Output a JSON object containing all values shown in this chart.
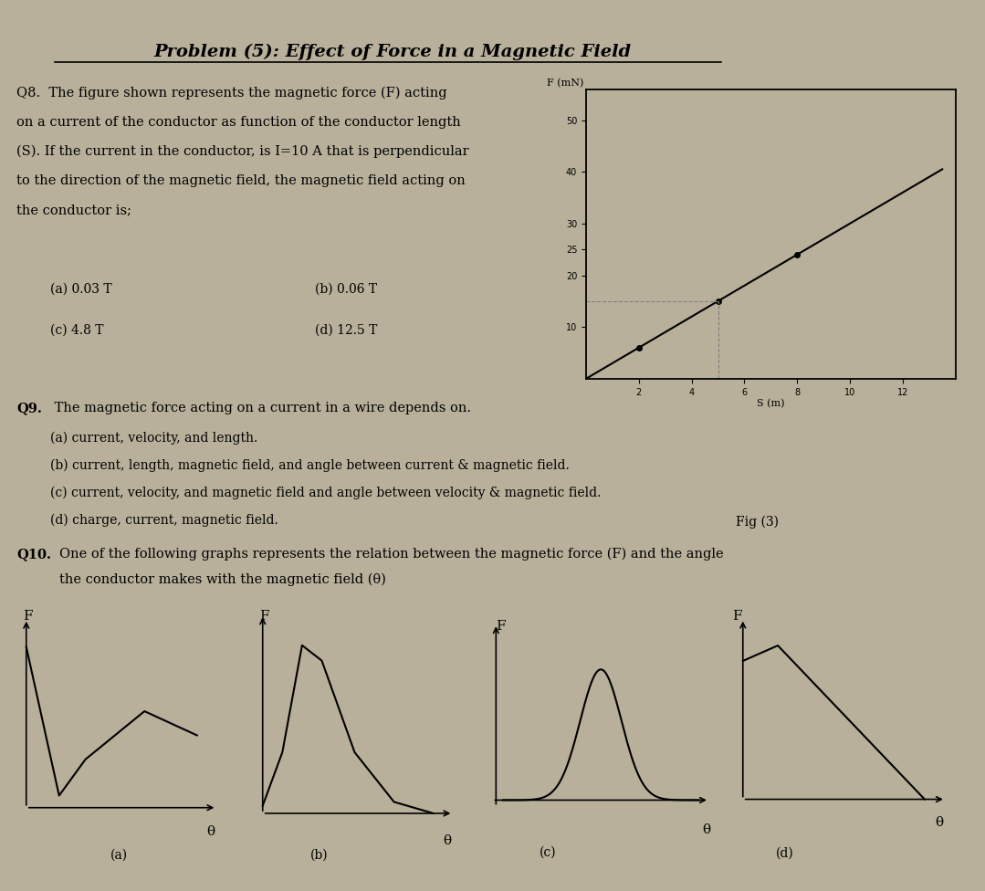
{
  "bg_color": "#b8b09a",
  "title": "Problem (5): Effect of Force in a Magnetic Field",
  "q8_text_bold": "Q8.",
  "q8_text": " The figure shown represents the magnetic force (F) acting\non a current of the conductor as function of the conductor length\n(S). If the current in the conductor, is I=10 A that is perpendicular\nto the direction of the magnetic field, the magnetic field acting on\nthe conductor is;",
  "q8_opt_a": "(a) 0.03 T",
  "q8_opt_b": "(b) 0.06 T",
  "q8_opt_c": "(c) 4.8 T",
  "q8_opt_d": "(d) 12.5 T",
  "fig3_ylabel": "F (mN)",
  "fig3_xlabel": "S (m)",
  "fig3_yticks": [
    10,
    20,
    25,
    30,
    40,
    50
  ],
  "fig3_xticks": [
    2,
    4,
    6,
    8,
    10,
    12
  ],
  "fig3_caption": "Fig (3)",
  "q9_bold": "Q9.",
  "q9_text": " The magnetic force acting on a current in a wire depends on.",
  "q9_opt_a": "(a) current, velocity, and length.",
  "q9_opt_b": "(b) current, length, magnetic field, and angle between current & magnetic field.",
  "q9_opt_c": "(c) current, velocity, and magnetic field and angle between velocity & magnetic field.",
  "q9_opt_d": "(d) charge, current, magnetic field.",
  "q10_bold": "Q10.",
  "q10_text": "  One of the following graphs represents the relation between the magnetic force (F) and the angle\n       the conductor makes with the magnetic field (θ)",
  "q10_labels": [
    "(a)",
    "(b)",
    "(c)",
    "(d)"
  ]
}
